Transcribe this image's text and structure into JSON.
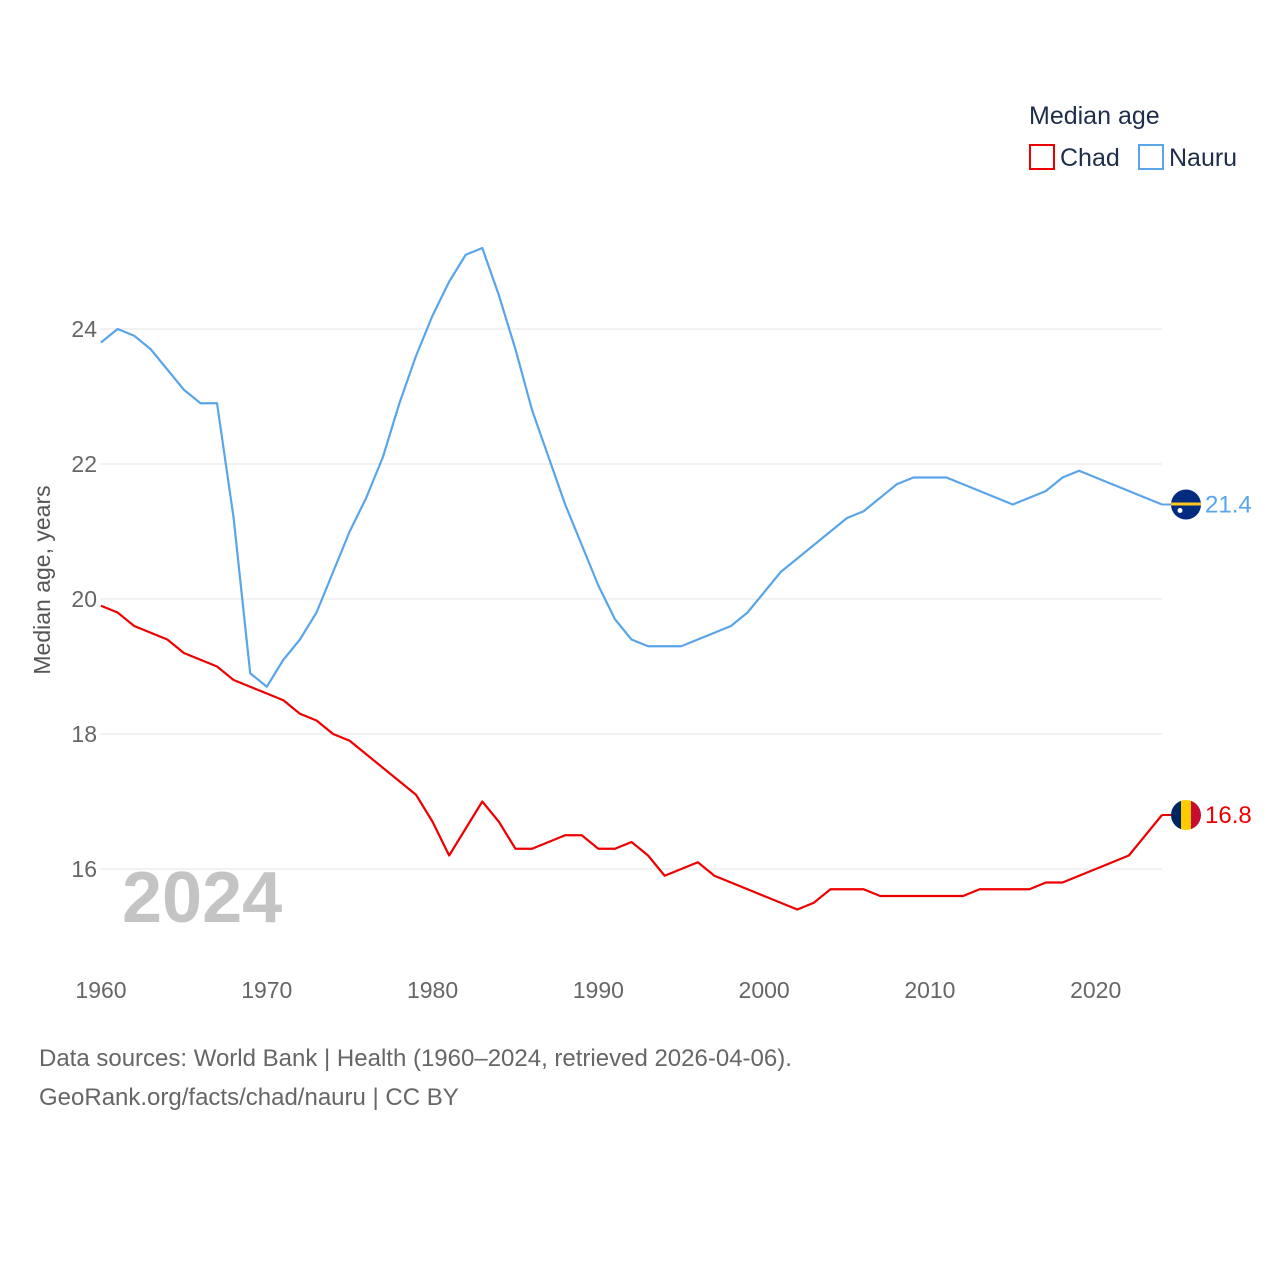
{
  "chart_data": {
    "type": "line",
    "legend_title": "Median age",
    "legend_placement": "top-right",
    "ylabel": "Median age, years",
    "xlabel": "",
    "ylim": [
      14.8,
      25.5
    ],
    "xlim": [
      1960,
      2024
    ],
    "grid": true,
    "y_ticks": [
      16,
      18,
      20,
      22,
      24
    ],
    "x_ticks": [
      1960,
      1970,
      1980,
      1990,
      2000,
      2010,
      2020
    ],
    "year_label": "2024",
    "x": [
      1960,
      1961,
      1962,
      1963,
      1964,
      1965,
      1966,
      1967,
      1968,
      1969,
      1970,
      1971,
      1972,
      1973,
      1974,
      1975,
      1976,
      1977,
      1978,
      1979,
      1980,
      1981,
      1982,
      1983,
      1984,
      1985,
      1986,
      1987,
      1988,
      1989,
      1990,
      1991,
      1992,
      1993,
      1994,
      1995,
      1996,
      1997,
      1998,
      1999,
      2000,
      2001,
      2002,
      2003,
      2004,
      2005,
      2006,
      2007,
      2008,
      2009,
      2010,
      2011,
      2012,
      2013,
      2014,
      2015,
      2016,
      2017,
      2018,
      2019,
      2020,
      2021,
      2022,
      2023,
      2024
    ],
    "series": [
      {
        "name": "Chad",
        "color": "#ee0000",
        "end_label": "16.8",
        "values": [
          19.9,
          19.8,
          19.6,
          19.5,
          19.4,
          19.2,
          19.1,
          19.0,
          18.8,
          18.7,
          18.6,
          18.5,
          18.3,
          18.2,
          18.0,
          17.9,
          17.7,
          17.5,
          17.3,
          17.1,
          16.7,
          16.2,
          16.6,
          17.0,
          16.7,
          16.3,
          16.3,
          16.4,
          16.5,
          16.5,
          16.3,
          16.3,
          16.4,
          16.2,
          15.9,
          16.0,
          16.1,
          15.9,
          15.8,
          15.7,
          15.6,
          15.5,
          15.4,
          15.5,
          15.7,
          15.7,
          15.7,
          15.6,
          15.6,
          15.6,
          15.6,
          15.6,
          15.6,
          15.7,
          15.7,
          15.7,
          15.7,
          15.8,
          15.8,
          15.9,
          16.0,
          16.1,
          16.2,
          16.5,
          16.8
        ]
      },
      {
        "name": "Nauru",
        "color": "#5aa5ea",
        "end_label": "21.4",
        "values": [
          23.8,
          24.0,
          23.9,
          23.7,
          23.4,
          23.1,
          22.9,
          22.9,
          21.2,
          18.9,
          18.7,
          19.1,
          19.4,
          19.8,
          20.4,
          21.0,
          21.5,
          22.1,
          22.9,
          23.6,
          24.2,
          24.7,
          25.1,
          25.2,
          24.5,
          23.7,
          22.8,
          22.1,
          21.4,
          20.8,
          20.2,
          19.7,
          19.4,
          19.3,
          19.3,
          19.3,
          19.4,
          19.5,
          19.6,
          19.8,
          20.1,
          20.4,
          20.6,
          20.8,
          21.0,
          21.2,
          21.3,
          21.5,
          21.7,
          21.8,
          21.8,
          21.8,
          21.7,
          21.6,
          21.5,
          21.4,
          21.5,
          21.6,
          21.8,
          21.9,
          21.8,
          21.7,
          21.6,
          21.5,
          21.4
        ]
      }
    ]
  },
  "footer": {
    "line1": "Data sources: World Bank | Health (1960–2024, retrieved 2026-04-06).",
    "line2": "GeoRank.org/facts/chad/nauru | CC BY"
  }
}
